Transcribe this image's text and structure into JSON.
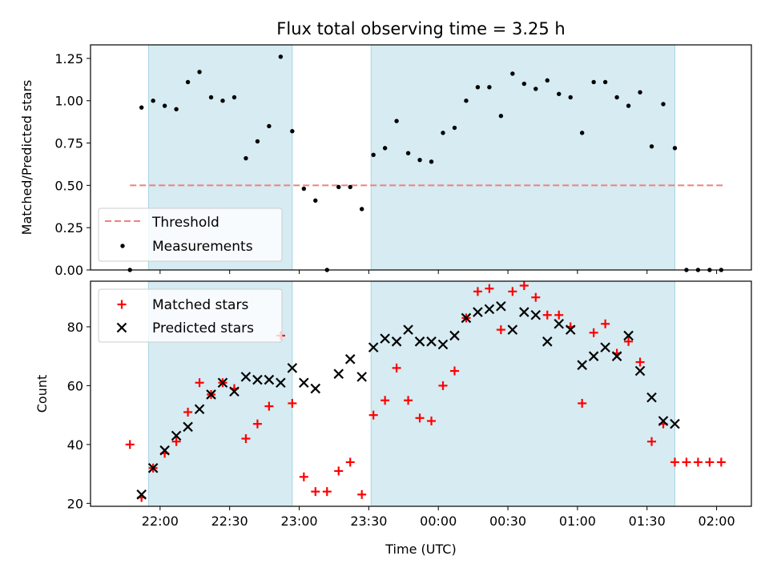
{
  "chart_data": [
    {
      "type": "scatter",
      "title": "Flux total observing time = 3.25 h",
      "ylabel": "Matched/Predicted stars",
      "xlabel": "",
      "ylim": [
        0,
        1.33
      ],
      "yticks": [
        "0.00",
        "0.25",
        "0.50",
        "0.75",
        "1.00",
        "1.25"
      ],
      "ytick_values": [
        0,
        0.25,
        0.5,
        0.75,
        1.0,
        1.25
      ],
      "shaded_intervals": [
        [
          "21:55",
          "22:57"
        ],
        [
          "23:31",
          "01:42"
        ]
      ],
      "threshold": {
        "name": "Threshold",
        "value": 0.5,
        "x_start": "21:47",
        "x_end": "02:03",
        "color": "#f08080"
      },
      "series": [
        {
          "name": "Measurements",
          "color": "#000000",
          "x": [
            "21:47",
            "21:52",
            "21:57",
            "22:02",
            "22:07",
            "22:12",
            "22:17",
            "22:22",
            "22:27",
            "22:32",
            "22:37",
            "22:42",
            "22:47",
            "22:52",
            "22:57",
            "23:02",
            "23:07",
            "23:12",
            "23:17",
            "23:22",
            "23:27",
            "23:32",
            "23:37",
            "23:42",
            "23:47",
            "23:52",
            "23:57",
            "00:02",
            "00:07",
            "00:12",
            "00:17",
            "00:22",
            "00:27",
            "00:32",
            "00:37",
            "00:42",
            "00:47",
            "00:52",
            "00:57",
            "01:02",
            "01:07",
            "01:12",
            "01:17",
            "01:22",
            "01:27",
            "01:32",
            "01:37",
            "01:42",
            "01:47",
            "01:52",
            "01:57",
            "02:02"
          ],
          "y": [
            0.0,
            0.96,
            1.0,
            0.97,
            0.95,
            1.11,
            1.17,
            1.02,
            1.0,
            1.02,
            0.66,
            0.76,
            0.85,
            1.26,
            0.82,
            0.48,
            0.41,
            0.0,
            0.49,
            0.49,
            0.36,
            0.68,
            0.72,
            0.88,
            0.69,
            0.65,
            0.64,
            0.81,
            0.84,
            1.0,
            1.08,
            1.08,
            0.91,
            1.16,
            1.1,
            1.07,
            1.12,
            1.04,
            1.02,
            0.81,
            1.11,
            1.11,
            1.02,
            0.97,
            1.05,
            0.73,
            0.98,
            0.72,
            0.0,
            0.0,
            0.0,
            0.0
          ]
        }
      ]
    },
    {
      "type": "scatter",
      "title": "",
      "ylabel": "Count",
      "xlabel": "Time (UTC)",
      "ylim": [
        19,
        95.5
      ],
      "yticks": [
        "20",
        "40",
        "60",
        "80"
      ],
      "ytick_values": [
        20,
        40,
        60,
        80
      ],
      "xticks": [
        "22:00",
        "22:30",
        "23:00",
        "23:30",
        "00:00",
        "00:30",
        "01:00",
        "01:30",
        "02:00"
      ],
      "shaded_intervals": [
        [
          "21:55",
          "22:57"
        ],
        [
          "23:31",
          "01:42"
        ]
      ],
      "series": [
        {
          "name": "Matched stars",
          "color": "#ff0000",
          "marker": "plus",
          "x": [
            "21:47",
            "21:52",
            "21:57",
            "22:02",
            "22:07",
            "22:12",
            "22:17",
            "22:22",
            "22:27",
            "22:32",
            "22:37",
            "22:42",
            "22:47",
            "22:52",
            "22:57",
            "23:02",
            "23:07",
            "23:12",
            "23:17",
            "23:22",
            "23:27",
            "23:32",
            "23:37",
            "23:42",
            "23:47",
            "23:52",
            "23:57",
            "00:02",
            "00:07",
            "00:12",
            "00:17",
            "00:22",
            "00:27",
            "00:32",
            "00:37",
            "00:42",
            "00:47",
            "00:52",
            "00:57",
            "01:02",
            "01:07",
            "01:12",
            "01:17",
            "01:22",
            "01:27",
            "01:32",
            "01:37",
            "01:42",
            "01:47",
            "01:52",
            "01:57",
            "02:02"
          ],
          "y": [
            40,
            22,
            32,
            37,
            41,
            51,
            61,
            57,
            61,
            59,
            42,
            47,
            53,
            77,
            54,
            29,
            24,
            24,
            31,
            34,
            23,
            50,
            55,
            66,
            55,
            49,
            48,
            60,
            65,
            83,
            92,
            93,
            79,
            92,
            94,
            90,
            84,
            84,
            80,
            54,
            78,
            81,
            71,
            75,
            68,
            41,
            47,
            34,
            34,
            34,
            34,
            34
          ]
        },
        {
          "name": "Predicted stars",
          "color": "#000000",
          "marker": "x",
          "x": [
            "21:52",
            "21:57",
            "22:02",
            "22:07",
            "22:12",
            "22:17",
            "22:22",
            "22:27",
            "22:32",
            "22:37",
            "22:42",
            "22:47",
            "22:52",
            "22:57",
            "23:02",
            "23:07",
            "23:17",
            "23:22",
            "23:27",
            "23:32",
            "23:37",
            "23:42",
            "23:47",
            "23:52",
            "23:57",
            "00:02",
            "00:07",
            "00:12",
            "00:17",
            "00:22",
            "00:27",
            "00:32",
            "00:37",
            "00:42",
            "00:47",
            "00:52",
            "00:57",
            "01:02",
            "01:07",
            "01:12",
            "01:17",
            "01:22",
            "01:27",
            "01:32",
            "01:37",
            "01:42"
          ],
          "y": [
            23,
            32,
            38,
            43,
            46,
            52,
            57,
            61,
            58,
            63,
            62,
            62,
            61,
            66,
            61,
            59,
            64,
            69,
            63,
            73,
            76,
            75,
            79,
            75,
            75,
            74,
            77,
            83,
            85,
            86,
            87,
            79,
            85,
            84,
            75,
            81,
            79,
            67,
            70,
            73,
            70,
            77,
            65,
            56,
            48,
            47
          ]
        }
      ]
    }
  ]
}
